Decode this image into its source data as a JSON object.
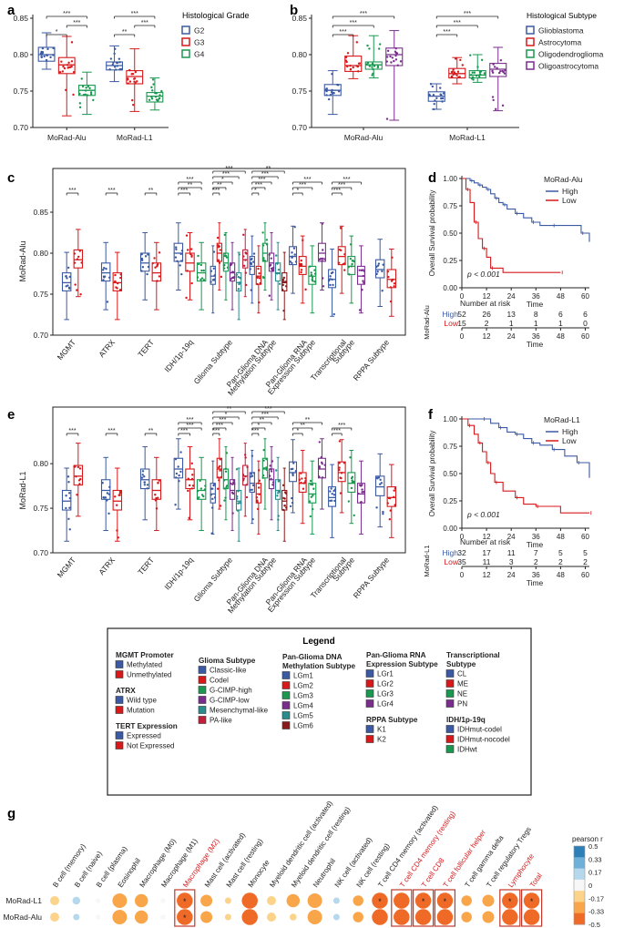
{
  "figure": {
    "letters": [
      "a",
      "b",
      "c",
      "d",
      "e",
      "f",
      "g"
    ]
  },
  "colors": {
    "G2": "#3b5aa3",
    "G3": "#d7191c",
    "G4": "#1a9850",
    "glioblastoma": "#3b5aa3",
    "astrocytoma": "#d7191c",
    "oligodendroglioma": "#1a9850",
    "oligoastrocytoma": "#7b2d8e",
    "km_high": "#3b5aa3",
    "km_low": "#d7191c",
    "teal": "#2a8c8c",
    "darkred": "#8b1a1a"
  },
  "panel_a": {
    "letter": "a",
    "legend_title": "Histological Grade",
    "legend": [
      "G2",
      "G3",
      "G4"
    ],
    "ylim": [
      0.7,
      0.85
    ],
    "yticks": [
      "0.70",
      "0.75",
      "0.80",
      "0.85"
    ],
    "groups": [
      "MoRad-Alu",
      "MoRad-L1"
    ],
    "medians": [
      [
        0.8,
        0.786,
        0.751
      ],
      [
        0.785,
        0.77,
        0.743
      ]
    ],
    "q1": [
      [
        0.791,
        0.774,
        0.744
      ],
      [
        0.779,
        0.76,
        0.735
      ]
    ],
    "q3": [
      [
        0.81,
        0.796,
        0.758
      ],
      [
        0.79,
        0.778,
        0.748
      ]
    ],
    "wmin": [
      [
        0.78,
        0.716,
        0.718
      ],
      [
        0.763,
        0.722,
        0.724
      ]
    ],
    "wmax": [
      [
        0.83,
        0.825,
        0.776
      ],
      [
        0.812,
        0.808,
        0.768
      ]
    ],
    "sig": [
      "*",
      "***",
      "***",
      "**",
      "***",
      "***"
    ]
  },
  "panel_b": {
    "letter": "b",
    "legend_title": "Histological Subtype",
    "legend": [
      "Glioblastoma",
      "Astrocytoma",
      "Oligodendroglioma",
      "Oligoastrocytoma"
    ],
    "ylim": [
      0.7,
      0.85
    ],
    "yticks": [
      "0.70",
      "0.75",
      "0.80",
      "0.85"
    ],
    "groups": [
      "MoRad-Alu",
      "MoRad-L1"
    ],
    "medians": [
      [
        0.751,
        0.785,
        0.786,
        0.8
      ],
      [
        0.743,
        0.774,
        0.772,
        0.78
      ]
    ],
    "q1": [
      [
        0.744,
        0.777,
        0.78,
        0.785
      ],
      [
        0.736,
        0.768,
        0.768,
        0.77
      ]
    ],
    "q3": [
      [
        0.759,
        0.798,
        0.79,
        0.809
      ],
      [
        0.749,
        0.781,
        0.778,
        0.788
      ]
    ],
    "wmin": [
      [
        0.718,
        0.767,
        0.768,
        0.71
      ],
      [
        0.725,
        0.76,
        0.762,
        0.723
      ]
    ],
    "wmax": [
      [
        0.778,
        0.826,
        0.826,
        0.833
      ],
      [
        0.76,
        0.796,
        0.8,
        0.81
      ]
    ],
    "sig": [
      "***",
      "***",
      "***",
      "***",
      "***",
      "***"
    ]
  },
  "panel_c": {
    "letter": "c",
    "ylabel": "MoRad-Alu",
    "ylim": [
      0.7,
      0.88
    ],
    "yticks": [
      "0.70",
      "0.75",
      "0.80",
      "0.85"
    ],
    "categories": [
      "MGMT",
      "ATRX",
      "TERT",
      "IDH/1p-19q",
      "Glioma Subtype",
      "Pan-Glioma DNA Methylation Subtype",
      "Pan-Glioma RNA Expression Subtype",
      "Transcriptional Subtype",
      "RPPA Subtype"
    ],
    "cat_lines": [
      [
        "MGMT"
      ],
      [
        "ATRX"
      ],
      [
        "TERT"
      ],
      [
        "IDH/1p-19q"
      ],
      [
        "Glioma Subtype"
      ],
      [
        "Pan-Glioma DNA",
        "Methylation Subtype"
      ],
      [
        "Pan-Glioma RNA",
        "Expression Subtype"
      ],
      [
        "Transcriptional",
        "Subtype"
      ],
      [
        "RPPA Subtype"
      ]
    ],
    "sig_labels": [
      "***",
      "***",
      "**",
      "***",
      "**",
      "***",
      "***",
      "**",
      "*",
      "***",
      "***",
      "*",
      "***",
      "***",
      "***",
      "**",
      "*",
      "***",
      "***",
      "***",
      "***",
      "***"
    ]
  },
  "panel_e": {
    "letter": "e",
    "ylabel": "MoRad-L1",
    "ylim": [
      0.7,
      0.84
    ],
    "yticks": [
      "0.70",
      "0.75",
      "0.80"
    ],
    "categories": [
      "MGMT",
      "ATRX",
      "TERT",
      "IDH/1p-19q",
      "Glioma Subtype",
      "Pan-Glioma DNA Methylation Subtype",
      "Pan-Glioma RNA Expression Subtype",
      "Transcriptional Subtype",
      "RPPA Subtype"
    ],
    "cat_lines": [
      [
        "MGMT"
      ],
      [
        "ATRX"
      ],
      [
        "TERT"
      ],
      [
        "IDH/1p-19q"
      ],
      [
        "Glioma Subtype"
      ],
      [
        "Pan-Glioma DNA",
        "Methylation Subtype"
      ],
      [
        "Pan-Glioma RNA",
        "Expression Subtype"
      ],
      [
        "Transcriptional",
        "Subtype"
      ],
      [
        "RPPA Subtype"
      ]
    ],
    "sig_labels": [
      "***",
      "***",
      "**",
      "***",
      "***",
      "***",
      "***",
      "***",
      "***",
      "*",
      "**",
      "***",
      "*",
      "**",
      "***",
      "***",
      "*",
      "**",
      "**",
      "***",
      "***"
    ]
  },
  "panel_d": {
    "letter": "d",
    "legend_title": "MoRad-Alu",
    "legend": [
      "High",
      "Low"
    ],
    "ylabel": "Overall Survival probability",
    "xlabel": "Time",
    "yticks": [
      "0.00",
      "0.25",
      "0.50",
      "0.75",
      "1.00"
    ],
    "xticks": [
      "0",
      "12",
      "24",
      "36",
      "48",
      "60"
    ],
    "pvalue": "p < 0.001",
    "risk_title": "Number at risk",
    "risk_side_label": "MoRad-Alu",
    "risk": [
      {
        "label": "High",
        "values": [
          "52",
          "26",
          "13",
          "8",
          "6",
          "6"
        ]
      },
      {
        "label": "Low",
        "values": [
          "15",
          "2",
          "1",
          "1",
          "1",
          "0"
        ]
      }
    ],
    "risk_xticks": [
      "0",
      "12",
      "24",
      "36",
      "48",
      "60"
    ],
    "risk_xlabel": "Time"
  },
  "panel_f": {
    "letter": "f",
    "legend_title": "MoRad-L1",
    "legend": [
      "High",
      "Low"
    ],
    "ylabel": "Overall Survival probability",
    "xlabel": "Time",
    "yticks": [
      "0.00",
      "0.25",
      "0.50",
      "0.75",
      "1.00"
    ],
    "xticks": [
      "0",
      "12",
      "24",
      "36",
      "48",
      "60"
    ],
    "pvalue": "p < 0.001",
    "risk_title": "Number at risk",
    "risk_side_label": "MoRad-L1",
    "risk": [
      {
        "label": "High",
        "values": [
          "32",
          "17",
          "11",
          "7",
          "5",
          "5"
        ]
      },
      {
        "label": "Low",
        "values": [
          "35",
          "11",
          "3",
          "2",
          "2",
          "2"
        ]
      }
    ],
    "risk_xticks": [
      "0",
      "12",
      "24",
      "36",
      "48",
      "60"
    ],
    "risk_xlabel": "Time"
  },
  "legend_box": {
    "title": "Legend",
    "columns": [
      {
        "sections": [
          {
            "title": [
              "MGMT Promoter"
            ],
            "items": [
              [
                "Methylated",
                "#3b5aa3"
              ],
              [
                "Unmethylated",
                "#d7191c"
              ]
            ]
          },
          {
            "title": [
              "ATRX"
            ],
            "items": [
              [
                "Wild type",
                "#3b5aa3"
              ],
              [
                "Mutation",
                "#d7191c"
              ]
            ]
          },
          {
            "title": [
              "TERT Expression"
            ],
            "items": [
              [
                "Expressed",
                "#3b5aa3"
              ],
              [
                "Not Expressed",
                "#d7191c"
              ]
            ]
          }
        ]
      },
      {
        "sections": [
          {
            "title": [
              "Glioma Subtype"
            ],
            "items": [
              [
                "Classic-like",
                "#3b5aa3"
              ],
              [
                "Codel",
                "#d7191c"
              ],
              [
                "G-CIMP-high",
                "#1a9850"
              ],
              [
                "G-CIMP-low",
                "#7b2d8e"
              ],
              [
                "Mesenchymal-like",
                "#2a8c8c"
              ],
              [
                "PA-like",
                "#c21f3a"
              ]
            ]
          }
        ]
      },
      {
        "sections": [
          {
            "title": [
              "Pan-Glioma DNA",
              "Methylation Subtype"
            ],
            "items": [
              [
                "LGm1",
                "#3b5aa3"
              ],
              [
                "LGm2",
                "#d7191c"
              ],
              [
                "LGm3",
                "#1a9850"
              ],
              [
                "LGm4",
                "#7b2d8e"
              ],
              [
                "LGm5",
                "#2a8c8c"
              ],
              [
                "LGm6",
                "#8b1a1a"
              ]
            ]
          }
        ]
      },
      {
        "sections": [
          {
            "title": [
              "Pan-Glioma RNA",
              "Expression Subtype"
            ],
            "items": [
              [
                "LGr1",
                "#3b5aa3"
              ],
              [
                "LGr2",
                "#d7191c"
              ],
              [
                "LGr3",
                "#1a9850"
              ],
              [
                "LGr4",
                "#7b2d8e"
              ]
            ]
          },
          {
            "title": [
              "RPPA Subtype"
            ],
            "items": [
              [
                "K1",
                "#3b5aa3"
              ],
              [
                "K2",
                "#d7191c"
              ]
            ]
          }
        ]
      },
      {
        "sections": [
          {
            "title": [
              "Transcriptional",
              "Subtype"
            ],
            "items": [
              [
                "CL",
                "#3b5aa3"
              ],
              [
                "ME",
                "#d7191c"
              ],
              [
                "NE",
                "#1a9850"
              ],
              [
                "PN",
                "#7b2d8e"
              ]
            ]
          },
          {
            "title": [
              "IDH/1p-19q"
            ],
            "items": [
              [
                "IDHmut-codel",
                "#3b5aa3"
              ],
              [
                "IDHmut-nocodel",
                "#d7191c"
              ],
              [
                "IDHwt",
                "#1a9850"
              ]
            ]
          }
        ]
      }
    ]
  },
  "panel_g": {
    "letter": "g",
    "rows": [
      "MoRad-L1",
      "MoRad-Alu"
    ],
    "columns": [
      "B cell (memory)",
      "B cell (naive)",
      "B cell (plasma)",
      "Eosinophil",
      "Macrophage (M0)",
      "Macrophage (M1)",
      "Macrophage (M2)",
      "Mast cell (activated)",
      "Mast cell (resting)",
      "Monocyte",
      "Myeloid dendritic cell (activated)",
      "Myeloid dendritic cell (resting)",
      "Neutrophil",
      "NK cell (activated)",
      "NK cell (resting)",
      "T cell CD4 memory (activated)",
      "T cell CD4 memory (resting)",
      "T cell CD8",
      "T cell follicular helper",
      "T cell gamma delta",
      "T cell regulatory Tregs",
      "Lymphocyte",
      "Total"
    ],
    "highlighted": [
      "Macrophage (M2)",
      "T cell CD4 memory (resting)",
      "T cell CD8",
      "T cell follicular helper",
      "Lymphocyte",
      "Total"
    ],
    "values": [
      [
        -0.2,
        0.15,
        -0.05,
        -0.4,
        -0.35,
        -0.05,
        -0.45,
        -0.3,
        -0.1,
        -0.45,
        -0.2,
        -0.35,
        -0.4,
        0.1,
        -0.25,
        -0.45,
        -0.45,
        -0.45,
        -0.45,
        -0.25,
        -0.3,
        -0.45,
        -0.45
      ],
      [
        -0.2,
        0.1,
        -0.05,
        -0.4,
        -0.35,
        -0.05,
        -0.45,
        -0.3,
        -0.1,
        -0.45,
        -0.2,
        -0.12,
        -0.4,
        0.1,
        -0.25,
        -0.45,
        -0.45,
        -0.45,
        -0.45,
        -0.25,
        -0.3,
        -0.45,
        -0.45
      ]
    ],
    "stars": [
      [
        0,
        0,
        0,
        0,
        0,
        0,
        1,
        0,
        0,
        0,
        0,
        0,
        0,
        0,
        0,
        1,
        0,
        1,
        1,
        0,
        0,
        1,
        1
      ],
      [
        0,
        0,
        0,
        0,
        0,
        0,
        1,
        0,
        0,
        0,
        0,
        0,
        0,
        0,
        0,
        0,
        0,
        0,
        0,
        0,
        0,
        0,
        0
      ]
    ],
    "star_symbol": "*",
    "colorbar_title": "pearson r",
    "colorbar_ticks": [
      "0.5",
      "0.33",
      "0.17",
      "0",
      "-0.17",
      "-0.33",
      "-0.5"
    ],
    "colorbar_colors": [
      "#2d7fb8",
      "#6fb0d8",
      "#b6d8ec",
      "#f7f7f7",
      "#fbd38a",
      "#f9a64a",
      "#ef6a26"
    ]
  }
}
